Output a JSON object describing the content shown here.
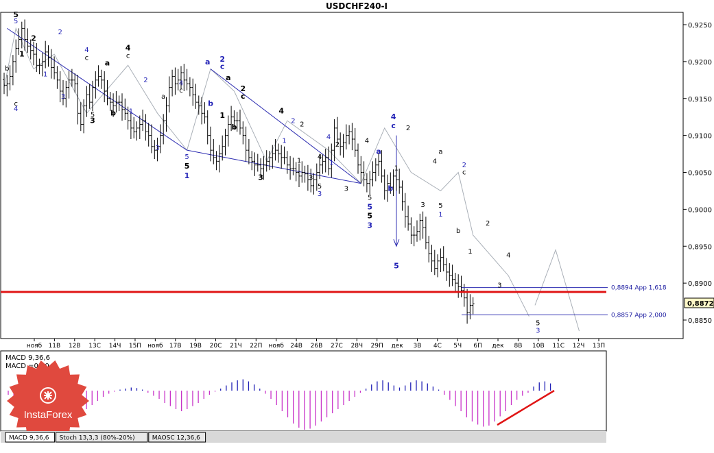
{
  "title": "USDCHF240-I",
  "colors": {
    "support_line": "#e01515",
    "level_line": "#2a2ab0",
    "wave_black": "#000000",
    "wave_blue": "#1f1fb5",
    "histogram": "#c832c8",
    "histogram_positive": "#1f1fb5",
    "projection": "#aab0b8",
    "logo": "#e0493e"
  },
  "chart_data": {
    "type": "candlestick-ohlc",
    "symbol": "USDCHF",
    "timeframe": "H4",
    "ylim": [
      0.883,
      0.9275
    ],
    "price_ticks": [
      "0,9250",
      "0,9200",
      "0,9150",
      "0,9100",
      "0,9050",
      "0,9000",
      "0,8950",
      "0,8900",
      "0,8850"
    ],
    "current_price": "0,8872",
    "support_level": 0.8888,
    "levels": [
      {
        "value": 0.8894,
        "label": "0,8894 App 1,618"
      },
      {
        "value": 0.8857,
        "label": "0,8857 App 2,000"
      }
    ],
    "date_labels": [
      "нояб",
      "11В",
      "12В",
      "13С",
      "14Ч",
      "15П",
      "нояб",
      "17В",
      "19В",
      "20С",
      "21Ч",
      "22П",
      "нояб",
      "24В",
      "26В",
      "27С",
      "28Ч",
      "29П",
      "дек",
      "3В",
      "4С",
      "5Ч",
      "6П",
      "дек",
      "8В",
      "10В",
      "11С",
      "12Ч",
      "13П"
    ],
    "close_series": [
      0.9168,
      0.917,
      0.918,
      0.92,
      0.9218,
      0.923,
      0.9245,
      0.923,
      0.9221,
      0.9215,
      0.921,
      0.9195,
      0.9195,
      0.92,
      0.9213,
      0.9205,
      0.9192,
      0.9185,
      0.9175,
      0.916,
      0.915,
      0.9165,
      0.9175,
      0.9175,
      0.917,
      0.913,
      0.9115,
      0.914,
      0.9155,
      0.9145,
      0.9165,
      0.9175,
      0.918,
      0.9175,
      0.916,
      0.915,
      0.9145,
      0.914,
      0.9145,
      0.9145,
      0.9135,
      0.913,
      0.912,
      0.911,
      0.9105,
      0.911,
      0.9115,
      0.912,
      0.9105,
      0.91,
      0.9085,
      0.908,
      0.9085,
      0.91,
      0.912,
      0.914,
      0.9165,
      0.918,
      0.917,
      0.9175,
      0.9185,
      0.9175,
      0.917,
      0.9165,
      0.9155,
      0.9145,
      0.914,
      0.913,
      0.9125,
      0.91,
      0.908,
      0.907,
      0.9065,
      0.9075,
      0.9085,
      0.91,
      0.9115,
      0.9125,
      0.912,
      0.912,
      0.911,
      0.91,
      0.908,
      0.907,
      0.9065,
      0.906,
      0.906,
      0.9055,
      0.906,
      0.9065,
      0.907,
      0.9075,
      0.908,
      0.9075,
      0.907,
      0.907,
      0.906,
      0.9055,
      0.9055,
      0.905,
      0.9045,
      0.905,
      0.9048,
      0.904,
      0.9032,
      0.904,
      0.905,
      0.906,
      0.9065,
      0.907,
      0.9055,
      0.908,
      0.911,
      0.9095,
      0.9085,
      0.909,
      0.91,
      0.9105,
      0.9095,
      0.908,
      0.906,
      0.905,
      0.904,
      0.9035,
      0.904,
      0.905,
      0.906,
      0.9065,
      0.9045,
      0.9025,
      0.9035,
      0.903,
      0.9045,
      0.904,
      0.903,
      0.901,
      0.899,
      0.898,
      0.8965,
      0.8965,
      0.897,
      0.8985,
      0.8975,
      0.8955,
      0.894,
      0.893,
      0.892,
      0.893,
      0.8935,
      0.8925,
      0.8915,
      0.891,
      0.8905,
      0.89,
      0.8895,
      0.889,
      0.888,
      0.886,
      0.887,
      0.8872
    ],
    "projection": [
      {
        "x": 180,
        "y": 0.887
      },
      {
        "x": 187,
        "y": 0.8945
      },
      {
        "x": 195,
        "y": 0.8835
      }
    ],
    "trend_channels": [
      {
        "from": [
          1,
          0.9245
        ],
        "to": [
          62,
          0.908
        ]
      },
      {
        "from": [
          62,
          0.908
        ],
        "to": [
          121,
          0.9035
        ]
      },
      {
        "from": [
          70,
          0.919
        ],
        "to": [
          121,
          0.9035
        ]
      }
    ],
    "thin_wave_paths": [
      [
        [
          0,
          0.9165
        ],
        [
          4,
          0.9245
        ],
        [
          10,
          0.919
        ],
        [
          17,
          0.921
        ],
        [
          28,
          0.913
        ],
        [
          42,
          0.9195
        ],
        [
          52,
          0.913
        ],
        [
          62,
          0.908
        ],
        [
          70,
          0.919
        ],
        [
          78,
          0.916
        ],
        [
          89,
          0.9065
        ],
        [
          96,
          0.912
        ],
        [
          110,
          0.908
        ],
        [
          121,
          0.9035
        ],
        [
          129,
          0.911
        ],
        [
          138,
          0.905
        ],
        [
          148,
          0.9025
        ],
        [
          154,
          0.905
        ],
        [
          159,
          0.8965
        ],
        [
          171,
          0.891
        ],
        [
          178,
          0.8855
        ]
      ]
    ],
    "wave_labels": [
      {
        "t": "5",
        "x": 4,
        "y": 0.926,
        "c": "black",
        "b": true
      },
      {
        "t": "5",
        "x": 4,
        "y": 0.9252,
        "c": "blue"
      },
      {
        "t": "b",
        "x": 1,
        "y": 0.9188,
        "c": "black"
      },
      {
        "t": "c",
        "x": 4,
        "y": 0.914,
        "c": "black"
      },
      {
        "t": "4",
        "x": 4,
        "y": 0.9133,
        "c": "blue"
      },
      {
        "t": "2",
        "x": 10,
        "y": 0.9228,
        "c": "black",
        "b": true
      },
      {
        "t": "1",
        "x": 6,
        "y": 0.9207,
        "c": "black",
        "b": true
      },
      {
        "t": "1",
        "x": 14,
        "y": 0.918,
        "c": "blue"
      },
      {
        "t": "2",
        "x": 19,
        "y": 0.9237,
        "c": "blue"
      },
      {
        "t": "3",
        "x": 20,
        "y": 0.915,
        "c": "blue"
      },
      {
        "t": "4",
        "x": 28,
        "y": 0.9213,
        "c": "blue"
      },
      {
        "t": "c",
        "x": 28,
        "y": 0.9202,
        "c": "black"
      },
      {
        "t": "5",
        "x": 30,
        "y": 0.9125,
        "c": "black"
      },
      {
        "t": "3",
        "x": 30,
        "y": 0.9117,
        "c": "black",
        "b": true
      },
      {
        "t": "a",
        "x": 35,
        "y": 0.9195,
        "c": "black",
        "b": true
      },
      {
        "t": "b",
        "x": 37,
        "y": 0.9127,
        "c": "black",
        "b": true
      },
      {
        "t": "4",
        "x": 42,
        "y": 0.9215,
        "c": "black",
        "b": true
      },
      {
        "t": "c",
        "x": 42,
        "y": 0.9205,
        "c": "black"
      },
      {
        "t": "1",
        "x": 43,
        "y": 0.913,
        "c": "blue"
      },
      {
        "t": "2",
        "x": 48,
        "y": 0.9172,
        "c": "blue"
      },
      {
        "t": "a",
        "x": 54,
        "y": 0.915,
        "c": "black"
      },
      {
        "t": "3",
        "x": 52,
        "y": 0.908,
        "c": "blue"
      },
      {
        "t": "4",
        "x": 60,
        "y": 0.9168,
        "c": "blue"
      },
      {
        "t": "c",
        "x": 60,
        "y": 0.9158,
        "c": "black"
      },
      {
        "t": "5",
        "x": 62,
        "y": 0.9068,
        "c": "blue"
      },
      {
        "t": "5",
        "x": 62,
        "y": 0.9055,
        "c": "black",
        "b": true
      },
      {
        "t": "1",
        "x": 62,
        "y": 0.9042,
        "c": "blue",
        "b": true
      },
      {
        "t": "a",
        "x": 69,
        "y": 0.9196,
        "c": "blue",
        "b": true
      },
      {
        "t": "b",
        "x": 70,
        "y": 0.914,
        "c": "blue",
        "b": true
      },
      {
        "t": "2",
        "x": 74,
        "y": 0.92,
        "c": "blue",
        "b": true
      },
      {
        "t": "c",
        "x": 74,
        "y": 0.919,
        "c": "blue",
        "b": true
      },
      {
        "t": "a",
        "x": 76,
        "y": 0.9175,
        "c": "black",
        "b": true
      },
      {
        "t": "1",
        "x": 74,
        "y": 0.9124,
        "c": "black",
        "b": true
      },
      {
        "t": "2",
        "x": 81,
        "y": 0.916,
        "c": "black",
        "b": true
      },
      {
        "t": "c",
        "x": 81,
        "y": 0.915,
        "c": "black",
        "b": true
      },
      {
        "t": "b",
        "x": 78,
        "y": 0.9108,
        "c": "black",
        "b": true
      },
      {
        "t": "3",
        "x": 87,
        "y": 0.904,
        "c": "black",
        "b": true
      },
      {
        "t": "4",
        "x": 94,
        "y": 0.913,
        "c": "black",
        "b": true
      },
      {
        "t": "2",
        "x": 98,
        "y": 0.9117,
        "c": "blue"
      },
      {
        "t": "1",
        "x": 95,
        "y": 0.909,
        "c": "blue"
      },
      {
        "t": "2",
        "x": 101,
        "y": 0.9112,
        "c": "black"
      },
      {
        "t": "1",
        "x": 100,
        "y": 0.9063,
        "c": "black"
      },
      {
        "t": "4",
        "x": 107,
        "y": 0.9068,
        "c": "black"
      },
      {
        "t": "3",
        "x": 104,
        "y": 0.904,
        "c": "black"
      },
      {
        "t": "4",
        "x": 110,
        "y": 0.9095,
        "c": "blue"
      },
      {
        "t": "2",
        "x": 113,
        "y": 0.9085,
        "c": "black"
      },
      {
        "t": "1",
        "x": 111,
        "y": 0.906,
        "c": "blue"
      },
      {
        "t": "5",
        "x": 107,
        "y": 0.9028,
        "c": "black"
      },
      {
        "t": "3",
        "x": 107,
        "y": 0.9018,
        "c": "blue"
      },
      {
        "t": "3",
        "x": 116,
        "y": 0.9025,
        "c": "black"
      },
      {
        "t": "4",
        "x": 123,
        "y": 0.909,
        "c": "black"
      },
      {
        "t": "5",
        "x": 124,
        "y": 0.9013,
        "c": "black"
      },
      {
        "t": "5",
        "x": 124,
        "y": 0.9,
        "c": "blue",
        "b": true
      },
      {
        "t": "5",
        "x": 124,
        "y": 0.8988,
        "c": "black",
        "b": true
      },
      {
        "t": "3",
        "x": 124,
        "y": 0.8975,
        "c": "blue",
        "b": true
      },
      {
        "t": "a",
        "x": 127,
        "y": 0.9075,
        "c": "blue",
        "b": true
      },
      {
        "t": "b",
        "x": 131,
        "y": 0.9025,
        "c": "blue",
        "b": true
      },
      {
        "t": "4",
        "x": 132,
        "y": 0.9122,
        "c": "blue",
        "b": true
      },
      {
        "t": "c",
        "x": 132,
        "y": 0.911,
        "c": "blue",
        "b": true
      },
      {
        "t": "1",
        "x": 133,
        "y": 0.9053,
        "c": "black"
      },
      {
        "t": "2",
        "x": 137,
        "y": 0.9107,
        "c": "black"
      },
      {
        "t": "5",
        "x": 133,
        "y": 0.892,
        "c": "blue",
        "b": true
      },
      {
        "t": "3",
        "x": 142,
        "y": 0.9003,
        "c": "black"
      },
      {
        "t": "4",
        "x": 146,
        "y": 0.9062,
        "c": "black"
      },
      {
        "t": "a",
        "x": 148,
        "y": 0.9075,
        "c": "black"
      },
      {
        "t": "5",
        "x": 148,
        "y": 0.9002,
        "c": "black"
      },
      {
        "t": "1",
        "x": 148,
        "y": 0.899,
        "c": "blue"
      },
      {
        "t": "b",
        "x": 154,
        "y": 0.8968,
        "c": "black"
      },
      {
        "t": "2",
        "x": 156,
        "y": 0.9057,
        "c": "blue"
      },
      {
        "t": "c",
        "x": 156,
        "y": 0.9047,
        "c": "black"
      },
      {
        "t": "1",
        "x": 158,
        "y": 0.894,
        "c": "black"
      },
      {
        "t": "2",
        "x": 164,
        "y": 0.8978,
        "c": "black"
      },
      {
        "t": "4",
        "x": 171,
        "y": 0.8935,
        "c": "black"
      },
      {
        "t": "3",
        "x": 168,
        "y": 0.8894,
        "c": "black"
      },
      {
        "t": "5",
        "x": 181,
        "y": 0.8843,
        "c": "black"
      },
      {
        "t": "3",
        "x": 181,
        "y": 0.8833,
        "c": "blue"
      }
    ],
    "target_arrow": {
      "x": 133,
      "from": 0.91,
      "to": 0.895
    }
  },
  "macd": {
    "label_line1": "MACD 9,36,6",
    "label_line2": "MACD =0,00",
    "histogram": [
      -0.4,
      -0.6,
      -0.8,
      -1.2,
      -1.5,
      -1.9,
      -2.4,
      -2.8,
      -3.0,
      -3.1,
      -3.0,
      -2.9,
      -2.6,
      -2.2,
      -1.8,
      -1.4,
      -1.0,
      -0.6,
      -0.3,
      -0.1,
      0.1,
      0.2,
      0.3,
      0.25,
      0.1,
      -0.2,
      -0.5,
      -0.8,
      -1.2,
      -1.5,
      -1.8,
      -2.0,
      -1.8,
      -1.5,
      -1.2,
      -0.8,
      -0.4,
      -0.1,
      0.2,
      0.5,
      0.8,
      1.0,
      1.1,
      0.9,
      0.6,
      0.2,
      -0.3,
      -0.8,
      -1.4,
      -2.0,
      -2.6,
      -3.2,
      -3.6,
      -3.8,
      -3.7,
      -3.4,
      -3.0,
      -2.6,
      -2.2,
      -1.8,
      -1.4,
      -1.0,
      -0.6,
      -0.2,
      0.2,
      0.6,
      0.9,
      1.0,
      0.8,
      0.5,
      0.3,
      0.5,
      0.8,
      1.0,
      0.9,
      0.7,
      0.4,
      0.1,
      -0.4,
      -0.9,
      -1.5,
      -2.0,
      -2.6,
      -3.0,
      -3.3,
      -3.5,
      -3.4,
      -3.0,
      -2.5,
      -2.0,
      -1.4,
      -0.9,
      -0.5,
      -0.2,
      0.4,
      0.8,
      0.9,
      0.7
    ],
    "signal_line_note": "red trendline rising"
  },
  "tabs": [
    "MACD 9,36,6",
    "Stoch 13,3,3 (80%-20%)",
    "MAOSC 12,36,6"
  ],
  "logo_text": "InstaForex"
}
